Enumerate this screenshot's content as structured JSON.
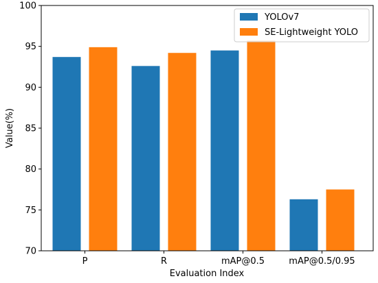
{
  "chart_data": {
    "type": "bar",
    "title": "",
    "xlabel": "Evaluation Index",
    "ylabel": "Value(%)",
    "categories": [
      "P",
      "R",
      "mAP@0.5",
      "mAP@0.5/0.95"
    ],
    "ylim": [
      70,
      100
    ],
    "yticks": [
      70,
      75,
      80,
      85,
      90,
      95,
      100
    ],
    "grid": false,
    "legend_position": "top-right",
    "series": [
      {
        "name": "YOLOv7",
        "color": "#1f77b4",
        "values": [
          93.7,
          92.6,
          94.5,
          76.3
        ]
      },
      {
        "name": "SE-Lightweight YOLO",
        "color": "#ff7f0e",
        "values": [
          94.9,
          94.2,
          95.7,
          77.5
        ]
      }
    ]
  }
}
